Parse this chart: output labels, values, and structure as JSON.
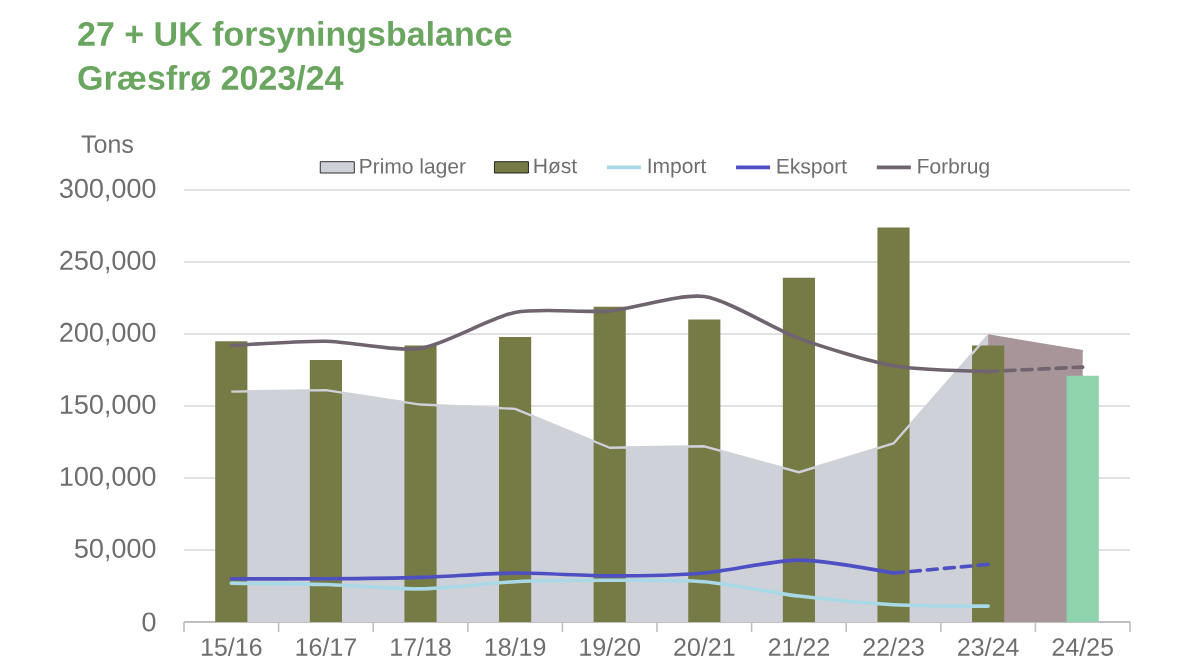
{
  "chart_data": {
    "type": "bar",
    "title": "27 + UK forsyningsbalance",
    "subtitle": "Græsfrø 2023/24",
    "ylabel": "Tons",
    "categories": [
      "15/16",
      "16/17",
      "17/18",
      "18/19",
      "19/20",
      "20/21",
      "21/22",
      "22/23",
      "23/24",
      "24/25"
    ],
    "ylim": [
      0,
      300000
    ],
    "yticks": [
      0,
      {
        "value": 50000,
        "label": "50,000"
      },
      {
        "value": 100000,
        "label": "100,000"
      },
      {
        "value": 150000,
        "label": "150,000"
      },
      {
        "value": 200000,
        "label": "200,000"
      },
      {
        "value": 250000,
        "label": "250,000"
      },
      {
        "value": 300000,
        "label": "300,000"
      }
    ],
    "grid": "y",
    "legend": "top",
    "series": [
      {
        "name": "Primo lager",
        "type": "area",
        "color": "#cfd1d9",
        "values": [
          160000,
          161000,
          151000,
          148000,
          121000,
          122000,
          104000,
          124000,
          199000,
          null
        ]
      },
      {
        "name": "Høst",
        "color": "#767a45",
        "colors": [
          "#767a45",
          "#767a45",
          "#767a45",
          "#767a45",
          "#767a45",
          "#767a45",
          "#767a45",
          "#767a45",
          "#767a45",
          "#8fd3ad"
        ],
        "values": [
          195000,
          182000,
          192000,
          198000,
          219000,
          210000,
          239000,
          274000,
          192000,
          171000
        ]
      },
      {
        "name": "Import",
        "type": "line",
        "color": "#a9d8e6",
        "values": [
          27000,
          26000,
          23000,
          28000,
          29000,
          28000,
          18000,
          12000,
          11000,
          null
        ]
      },
      {
        "name": "Eksport",
        "type": "line",
        "color": "#4f4fc4",
        "values": [
          30000,
          30000,
          31000,
          34000,
          32000,
          34000,
          43000,
          34000,
          null,
          null
        ]
      },
      {
        "name": "Forbrug",
        "type": "line",
        "color": "#6f6470",
        "values": [
          192000,
          195000,
          190000,
          215000,
          216000,
          226000,
          197000,
          178000,
          174000,
          null
        ]
      },
      {
        "type": "area",
        "color": "#a89599",
        "values": [
          null,
          null,
          null,
          null,
          null,
          null,
          null,
          null,
          199000,
          188000
        ]
      },
      {
        "type": "line",
        "color": "#4f4fc4",
        "line_style": "dashed",
        "values": [
          null,
          null,
          null,
          null,
          null,
          null,
          null,
          34000,
          40000,
          null
        ]
      },
      {
        "type": "line",
        "color": "#6f6470",
        "line_style": "dashed",
        "values": [
          null,
          null,
          null,
          null,
          null,
          null,
          null,
          null,
          174000,
          177000
        ]
      }
    ]
  }
}
